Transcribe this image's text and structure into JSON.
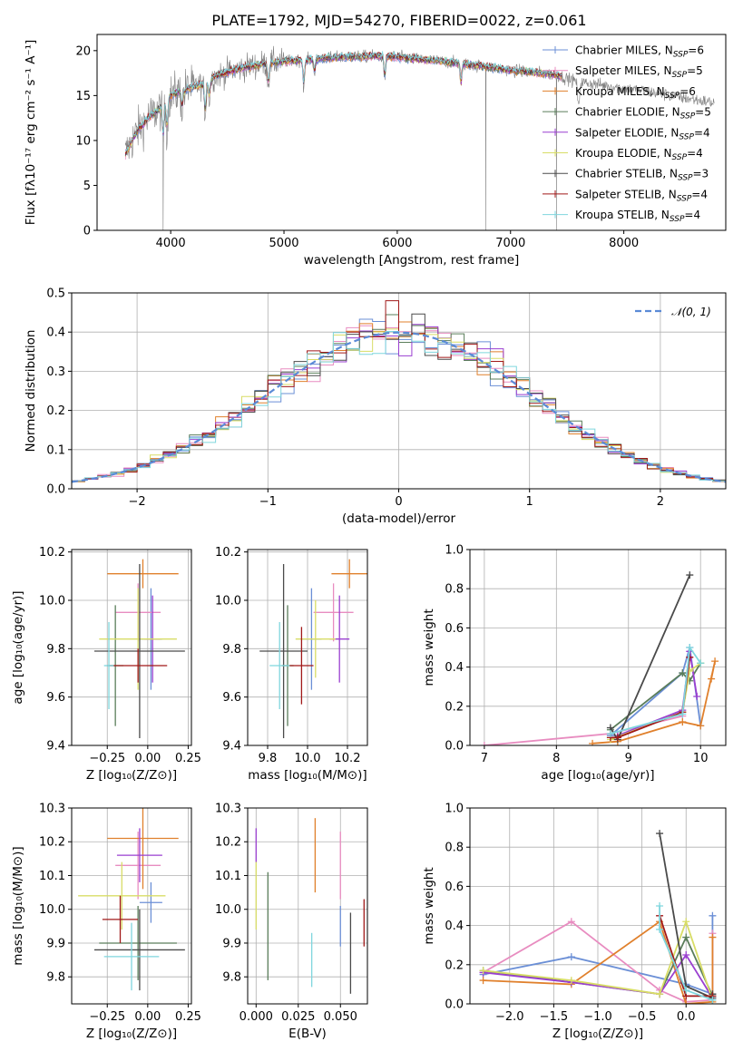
{
  "title": "PLATE=1792, MJD=54270, FIBERID=0022, z=0.061",
  "colors": {
    "Chabrier MILES": "#6b8fd6",
    "Salpeter MILES": "#e88cc0",
    "Kroupa MILES": "#e0802c",
    "Chabrier ELODIE": "#5a7d5a",
    "Salpeter ELODIE": "#9a3fd0",
    "Kroupa ELODIE": "#d8dd66",
    "Chabrier STELIB": "#4a4a4a",
    "Salpeter STELIB": "#a01818",
    "Kroupa STELIB": "#7fd6de",
    "data": "#7f7f7f"
  },
  "chart_data": [
    {
      "id": "spectrum",
      "type": "line",
      "title": "PLATE=1792, MJD=54270, FIBERID=0022, z=0.061",
      "xlabel": "wavelength [Angstrom, rest frame]",
      "ylabel": "Flux [fλ10⁻¹⁷ erg cm⁻² s⁻¹ A⁻¹]",
      "xlim": [
        3350,
        8900
      ],
      "ylim": [
        0,
        21.8
      ],
      "xticks": [
        4000,
        5000,
        6000,
        7000,
        8000
      ],
      "yticks": [
        0,
        5,
        10,
        15,
        20
      ],
      "grid": false,
      "legend": "right",
      "legend_entries": [
        {
          "model": "Chabrier MILES",
          "nssp": "6"
        },
        {
          "model": "Salpeter MILES",
          "nssp": "5"
        },
        {
          "model": "Kroupa MILES",
          "nssp": "6"
        },
        {
          "model": "Chabrier ELODIE",
          "nssp": "5"
        },
        {
          "model": "Salpeter ELODIE",
          "nssp": "4"
        },
        {
          "model": "Kroupa ELODIE",
          "nssp": "4"
        },
        {
          "model": "Chabrier STELIB",
          "nssp": "3"
        },
        {
          "model": "Salpeter STELIB",
          "nssp": "4"
        },
        {
          "model": "Kroupa STELIB",
          "nssp": "4"
        }
      ],
      "continuum": {
        "x": [
          3600,
          3700,
          3800,
          3900,
          4000,
          4100,
          4200,
          4300,
          4400,
          4600,
          4800,
          5000,
          5200,
          5400,
          5600,
          5800,
          6000,
          6200,
          6400,
          6600,
          6800,
          7000,
          7200,
          7400,
          7600,
          7800,
          8000,
          8200,
          8400,
          8600,
          8800
        ],
        "y": [
          8.5,
          11.0,
          12.5,
          13.5,
          15.0,
          15.5,
          16.0,
          16.3,
          17.2,
          18.0,
          18.5,
          18.8,
          19.0,
          19.2,
          19.3,
          19.4,
          19.3,
          19.0,
          18.8,
          18.5,
          18.2,
          17.8,
          17.6,
          17.3,
          16.5,
          16.2,
          15.8,
          15.5,
          15.0,
          14.6,
          14.2
        ]
      },
      "model_range": [
        3600,
        7450
      ],
      "data_dips": [
        {
          "x": 3933,
          "y": 0
        },
        {
          "x": 6780,
          "y": 0
        },
        {
          "x": 7405,
          "y": 0
        }
      ]
    },
    {
      "id": "residuals",
      "type": "histogram",
      "xlabel": "(data-model)/error",
      "ylabel": "Normed distribution",
      "xlim": [
        -2.5,
        2.5
      ],
      "ylim": [
        0,
        0.5
      ],
      "xticks": [
        -2,
        -1,
        0,
        1,
        2
      ],
      "yticks": [
        0.0,
        0.1,
        0.2,
        0.3,
        0.4,
        0.5
      ],
      "grid": true,
      "legend": "top-right",
      "legend_label": "𝒩(0, 1)",
      "bin_width": 0.1,
      "peak_bin": {
        "x": -0.05,
        "y": 0.48
      }
    },
    {
      "id": "age-vs-Z",
      "type": "errorbar",
      "xlabel": "Z [log₁₀(Z/Z⊙)]",
      "ylabel": "age  [log₁₀(age/yr)]",
      "xlim": [
        -0.47,
        0.27
      ],
      "ylim": [
        9.4,
        10.21
      ],
      "xticks": [
        -0.25,
        0.0,
        0.25
      ],
      "xticklabels": [
        "−0.25",
        "0.00",
        "0.25"
      ],
      "yticks": [
        9.4,
        9.6,
        9.8,
        10.0,
        10.2
      ],
      "grid": true,
      "points": [
        {
          "model": "Chabrier MILES",
          "x": 0.02,
          "y": 9.84,
          "xerr": 0.07,
          "yerr": 0.21
        },
        {
          "model": "Salpeter MILES",
          "x": -0.06,
          "y": 9.95,
          "xerr": 0.14,
          "yerr": 0.12
        },
        {
          "model": "Kroupa MILES",
          "x": -0.03,
          "y": 10.11,
          "xerr": 0.22,
          "yerr": 0.06
        },
        {
          "model": "Chabrier ELODIE",
          "x": -0.2,
          "y": 9.73,
          "xerr": 0.05,
          "yerr": 0.25
        },
        {
          "model": "Salpeter ELODIE",
          "x": 0.03,
          "y": 9.84,
          "xerr": 0.05,
          "yerr": 0.18
        },
        {
          "model": "Kroupa ELODIE",
          "x": -0.06,
          "y": 9.84,
          "xerr": 0.24,
          "yerr": 0.21
        },
        {
          "model": "Chabrier STELIB",
          "x": -0.05,
          "y": 9.79,
          "xerr": 0.28,
          "yerr": 0.36
        },
        {
          "model": "Salpeter STELIB",
          "x": -0.06,
          "y": 9.73,
          "xerr": 0.18,
          "yerr": 0.07
        },
        {
          "model": "Kroupa STELIB",
          "x": -0.24,
          "y": 9.73,
          "xerr": 0.03,
          "yerr": 0.18
        }
      ]
    },
    {
      "id": "age-vs-mass",
      "type": "errorbar",
      "xlabel": "mass [log₁₀(M/M⊙)]",
      "ylabel": "",
      "xlim": [
        9.7,
        10.3
      ],
      "ylim": [
        9.4,
        10.21
      ],
      "xticks": [
        9.8,
        10.0,
        10.2
      ],
      "xticklabels": [
        "9.8",
        "10.0",
        "10.2"
      ],
      "yticks": [
        9.4,
        9.6,
        9.8,
        10.0,
        10.2
      ],
      "grid": true,
      "points": [
        {
          "model": "Chabrier MILES",
          "x": 10.02,
          "y": 9.84,
          "xerr": 0.05,
          "yerr": 0.21
        },
        {
          "model": "Salpeter MILES",
          "x": 10.13,
          "y": 9.95,
          "xerr": 0.1,
          "yerr": 0.12
        },
        {
          "model": "Kroupa MILES",
          "x": 10.21,
          "y": 10.11,
          "xerr": 0.09,
          "yerr": 0.06
        },
        {
          "model": "Chabrier ELODIE",
          "x": 9.9,
          "y": 9.73,
          "xerr": 0.03,
          "yerr": 0.25
        },
        {
          "model": "Salpeter ELODIE",
          "x": 10.16,
          "y": 9.84,
          "xerr": 0.05,
          "yerr": 0.18
        },
        {
          "model": "Kroupa ELODIE",
          "x": 10.04,
          "y": 9.84,
          "xerr": 0.1,
          "yerr": 0.16
        },
        {
          "model": "Chabrier STELIB",
          "x": 9.88,
          "y": 9.79,
          "xerr": 0.12,
          "yerr": 0.36
        },
        {
          "model": "Salpeter STELIB",
          "x": 9.97,
          "y": 9.73,
          "xerr": 0.06,
          "yerr": 0.16
        },
        {
          "model": "Kroupa STELIB",
          "x": 9.86,
          "y": 9.73,
          "xerr": 0.05,
          "yerr": 0.18
        }
      ]
    },
    {
      "id": "weight-vs-age",
      "type": "line",
      "xlabel": "age  [log₁₀(age/yr)]",
      "ylabel": "mass weight",
      "xlim": [
        6.8,
        10.35
      ],
      "ylim": [
        0,
        1.0
      ],
      "xticks": [
        7,
        8,
        9,
        10
      ],
      "yticks": [
        0.0,
        0.2,
        0.4,
        0.6,
        0.8,
        1.0
      ],
      "grid": true,
      "series": [
        {
          "model": "Chabrier MILES",
          "x": [
            8.75,
            9.75,
            9.85,
            10.0
          ],
          "y": [
            0.05,
            0.37,
            0.5,
            0.1
          ]
        },
        {
          "model": "Salpeter MILES",
          "x": [
            7.0,
            8.75,
            9.75,
            9.85
          ],
          "y": [
            0.0,
            0.06,
            0.15,
            0.45
          ]
        },
        {
          "model": "Kroupa MILES",
          "x": [
            8.5,
            8.85,
            9.75,
            10.0,
            10.2,
            10.15
          ],
          "y": [
            0.01,
            0.02,
            0.12,
            0.1,
            0.43,
            0.34
          ]
        },
        {
          "model": "Chabrier ELODIE",
          "x": [
            8.75,
            9.75,
            9.85,
            10.0
          ],
          "y": [
            0.08,
            0.37,
            0.33,
            0.42
          ]
        },
        {
          "model": "Salpeter ELODIE",
          "x": [
            8.85,
            9.75,
            9.85,
            9.95
          ],
          "y": [
            0.05,
            0.18,
            0.48,
            0.25
          ]
        },
        {
          "model": "Kroupa ELODIE",
          "x": [
            8.75,
            9.75,
            9.85,
            10.0
          ],
          "y": [
            0.03,
            0.17,
            0.38,
            0.42
          ]
        },
        {
          "model": "Chabrier STELIB",
          "x": [
            8.75,
            8.85,
            9.85
          ],
          "y": [
            0.09,
            0.03,
            0.87
          ]
        },
        {
          "model": "Salpeter STELIB",
          "x": [
            8.75,
            8.85,
            9.75,
            9.85
          ],
          "y": [
            0.04,
            0.04,
            0.17,
            0.45
          ]
        },
        {
          "model": "Kroupa STELIB",
          "x": [
            8.75,
            9.75,
            9.85,
            10.0
          ],
          "y": [
            0.06,
            0.16,
            0.5,
            0.42
          ]
        }
      ]
    },
    {
      "id": "mass-vs-Z",
      "type": "errorbar",
      "xlabel": "Z [log₁₀(Z/Z⊙)]",
      "ylabel": "mass [log₁₀(M/M⊙)]",
      "xlim": [
        -0.47,
        0.27
      ],
      "ylim": [
        9.72,
        10.3
      ],
      "xticks": [
        -0.25,
        0.0,
        0.25
      ],
      "xticklabels": [
        "−0.25",
        "0.00",
        "0.25"
      ],
      "yticks": [
        9.8,
        9.9,
        10.0,
        10.1,
        10.2,
        10.3
      ],
      "grid": true,
      "points": [
        {
          "model": "Chabrier MILES",
          "x": 0.02,
          "y": 10.02,
          "xerr": 0.07,
          "yerr": 0.06
        },
        {
          "model": "Salpeter MILES",
          "x": -0.06,
          "y": 10.13,
          "xerr": 0.14,
          "yerr": 0.1
        },
        {
          "model": "Kroupa MILES",
          "x": -0.03,
          "y": 10.21,
          "xerr": 0.22,
          "yerr": 0.15
        },
        {
          "model": "Chabrier ELODIE",
          "x": -0.06,
          "y": 9.9,
          "xerr": 0.24,
          "yerr": 0.11
        },
        {
          "model": "Salpeter ELODIE",
          "x": -0.05,
          "y": 10.16,
          "xerr": 0.14,
          "yerr": 0.08
        },
        {
          "model": "Kroupa ELODIE",
          "x": -0.16,
          "y": 10.04,
          "xerr": 0.27,
          "yerr": 0.1
        },
        {
          "model": "Chabrier STELIB",
          "x": -0.05,
          "y": 9.88,
          "xerr": 0.28,
          "yerr": 0.12
        },
        {
          "model": "Salpeter STELIB",
          "x": -0.17,
          "y": 9.97,
          "xerr": 0.11,
          "yerr": 0.07
        },
        {
          "model": "Kroupa STELIB",
          "x": -0.1,
          "y": 9.86,
          "xerr": 0.17,
          "yerr": 0.1
        }
      ]
    },
    {
      "id": "mass-vs-EBV",
      "type": "errorbar",
      "xlabel": "E(B-V)",
      "ylabel": "",
      "xlim": [
        -0.005,
        0.066
      ],
      "ylim": [
        9.72,
        10.3
      ],
      "xticks": [
        0.0,
        0.025,
        0.05
      ],
      "xticklabels": [
        "0.000",
        "0.025",
        "0.050"
      ],
      "yticks": [
        9.8,
        9.9,
        10.0,
        10.1,
        10.2,
        10.3
      ],
      "grid": true,
      "points": [
        {
          "model": "Chabrier MILES",
          "x": 0.05,
          "y": 9.95,
          "xerr": 0,
          "yerr": 0.06
        },
        {
          "model": "Salpeter MILES",
          "x": 0.05,
          "y": 10.13,
          "xerr": 0,
          "yerr": 0.1
        },
        {
          "model": "Kroupa MILES",
          "x": 0.035,
          "y": 10.16,
          "xerr": 0,
          "yerr": 0.11
        },
        {
          "model": "Chabrier ELODIE",
          "x": 0.007,
          "y": 9.95,
          "xerr": 0,
          "yerr": 0.16
        },
        {
          "model": "Salpeter ELODIE",
          "x": 0.0,
          "y": 10.19,
          "xerr": 0,
          "yerr": 0.05
        },
        {
          "model": "Kroupa ELODIE",
          "x": 0.0,
          "y": 10.04,
          "xerr": 0,
          "yerr": 0.1
        },
        {
          "model": "Chabrier STELIB",
          "x": 0.056,
          "y": 9.87,
          "xerr": 0,
          "yerr": 0.12
        },
        {
          "model": "Salpeter STELIB",
          "x": 0.064,
          "y": 9.96,
          "xerr": 0,
          "yerr": 0.07
        },
        {
          "model": "Kroupa STELIB",
          "x": 0.033,
          "y": 9.85,
          "xerr": 0,
          "yerr": 0.08
        }
      ]
    },
    {
      "id": "weight-vs-Z",
      "type": "line",
      "xlabel": "Z [log₁₀(Z/Z⊙)]",
      "ylabel": "mass weight",
      "xlim": [
        -2.45,
        0.45
      ],
      "ylim": [
        0,
        1.0
      ],
      "xticks": [
        -2.0,
        -1.5,
        -1.0,
        -0.5,
        0.0
      ],
      "xticklabels": [
        "−2.0",
        "−1.5",
        "−1.0",
        "−0.5",
        "0.0"
      ],
      "yticks": [
        0.0,
        0.2,
        0.4,
        0.6,
        0.8,
        1.0
      ],
      "grid": true,
      "series": [
        {
          "model": "Chabrier MILES",
          "x": [
            -2.3,
            -1.3,
            0.0,
            0.3,
            0.3
          ],
          "y": [
            0.15,
            0.24,
            0.1,
            0.05,
            0.45
          ]
        },
        {
          "model": "Salpeter MILES",
          "x": [
            -2.3,
            -1.3,
            -0.3,
            0.0,
            0.3,
            0.3
          ],
          "y": [
            0.16,
            0.42,
            0.07,
            0.01,
            0.02,
            0.36
          ]
        },
        {
          "model": "Kroupa MILES",
          "x": [
            -2.3,
            -1.3,
            -0.3,
            0.0,
            0.3,
            0.3
          ],
          "y": [
            0.12,
            0.1,
            0.42,
            0.0,
            0.01,
            0.34
          ]
        },
        {
          "model": "Chabrier ELODIE",
          "x": [
            -2.3,
            -1.3,
            -0.3,
            0.0,
            0.3
          ],
          "y": [
            0.17,
            0.11,
            0.05,
            0.34,
            0.04
          ]
        },
        {
          "model": "Salpeter ELODIE",
          "x": [
            -2.3,
            -1.3,
            -0.3,
            0.0,
            0.3
          ],
          "y": [
            0.16,
            0.11,
            0.05,
            0.25,
            0.03
          ]
        },
        {
          "model": "Kroupa ELODIE",
          "x": [
            -2.3,
            -1.3,
            -0.3,
            0.0,
            0.3
          ],
          "y": [
            0.17,
            0.12,
            0.05,
            0.42,
            0.02
          ]
        },
        {
          "model": "Chabrier STELIB",
          "x": [
            -0.3,
            0.0,
            0.3,
            0.3
          ],
          "y": [
            0.87,
            0.09,
            0.03,
            0.05
          ]
        },
        {
          "model": "Salpeter STELIB",
          "x": [
            -0.3,
            0.0,
            0.3
          ],
          "y": [
            0.45,
            0.04,
            0.04
          ]
        },
        {
          "model": "Kroupa STELIB",
          "x": [
            -0.3,
            -0.3,
            0.0,
            0.3
          ],
          "y": [
            0.5,
            0.38,
            0.07,
            0.02
          ]
        }
      ]
    }
  ]
}
